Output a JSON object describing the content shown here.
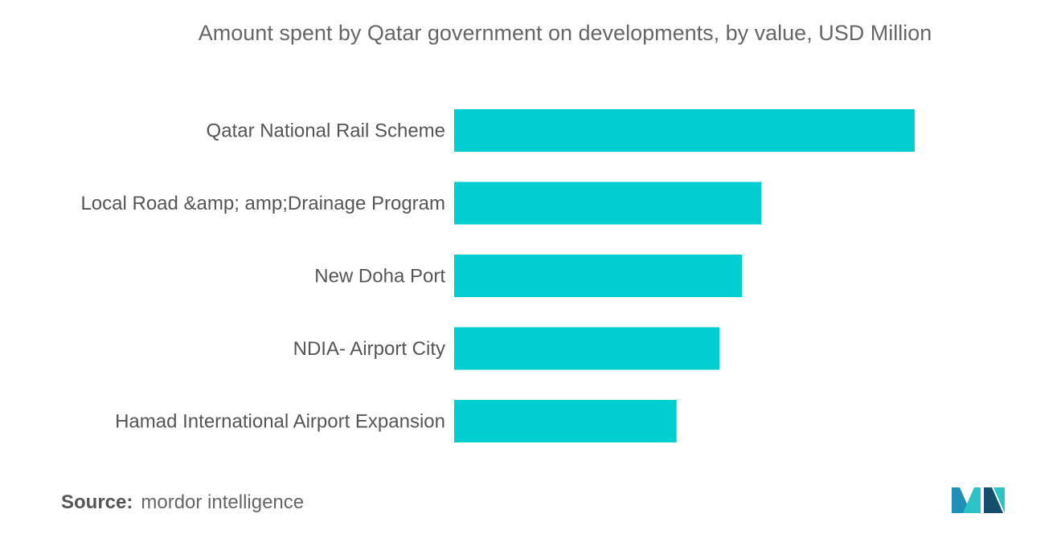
{
  "chart_data": {
    "type": "bar",
    "orientation": "horizontal",
    "title": "Amount spent by Qatar government on developments, by  value, USD Million",
    "categories": [
      "Qatar National Rail Scheme",
      "Local Road &amp; amp;Drainage Program",
      "New Doha Port",
      "NDIA- Airport City",
      "Hamad International Airport Expansion"
    ],
    "values": [
      100,
      66.7,
      62.5,
      57.6,
      48.3
    ],
    "xlim": [
      0,
      100
    ],
    "grid": false,
    "legend": "none",
    "bar_color": "#00CFD1"
  },
  "source": {
    "label": "Source:",
    "text": "mordor intelligence"
  },
  "logo": {
    "icon": "mordor-intelligence-logo-icon",
    "colors": [
      "#1F8FB5",
      "#2CC3C7",
      "#14506E"
    ]
  }
}
